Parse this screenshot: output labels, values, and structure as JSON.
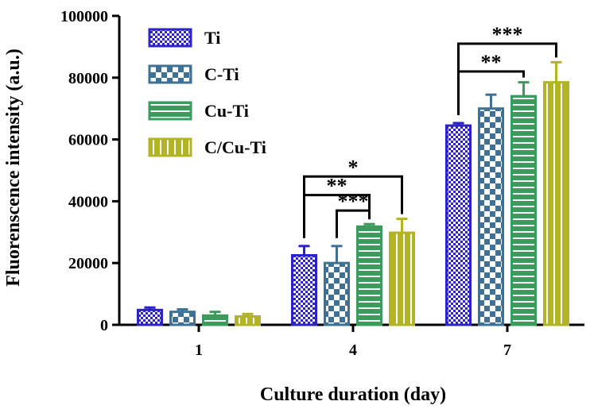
{
  "chart_data": {
    "type": "bar",
    "xlabel": "Culture duration (day)",
    "ylabel": "Fluorenscence intensity (a.u.)",
    "ylim": [
      0,
      100000
    ],
    "yticks": [
      "0",
      "20000",
      "40000",
      "60000",
      "80000",
      "100000"
    ],
    "yticks_values": [
      0,
      20000,
      40000,
      60000,
      80000,
      100000
    ],
    "categories": [
      "1",
      "4",
      "7"
    ],
    "series": [
      {
        "name": "Ti",
        "color": "#2b22c8",
        "pattern": "checker-small",
        "values": [
          4800,
          22500,
          64500
        ],
        "errors": [
          800,
          3000,
          800
        ]
      },
      {
        "name": "C-Ti",
        "color": "#3f7095",
        "pattern": "checker-large",
        "values": [
          4200,
          20000,
          70000
        ],
        "errors": [
          800,
          5500,
          4500
        ]
      },
      {
        "name": "Cu-Ti",
        "color": "#3c9a5c",
        "pattern": "horizontal",
        "values": [
          3000,
          31800,
          74000
        ],
        "errors": [
          1200,
          800,
          4500
        ]
      },
      {
        "name": "C/Cu-Ti",
        "color": "#b3b425",
        "pattern": "vertical",
        "values": [
          2700,
          29800,
          78500
        ],
        "errors": [
          800,
          4500,
          6500
        ]
      }
    ],
    "significance": [
      {
        "label": "*",
        "category": "4",
        "from": "Ti",
        "to": "C/Cu-Ti",
        "top": 48000
      },
      {
        "label": "**",
        "category": "4",
        "from": "Ti",
        "to": "Cu-Ti",
        "top": 42000
      },
      {
        "label": "***",
        "category": "4",
        "from": "C-Ti",
        "to": "Cu-Ti",
        "top": 37000
      },
      {
        "label": "**",
        "category": "7",
        "from": "Ti",
        "to": "Cu-Ti",
        "top": 82000
      },
      {
        "label": "***",
        "category": "7",
        "from": "Ti",
        "to": "C/Cu-Ti",
        "top": 91000
      }
    ],
    "legend_position": "top-left"
  }
}
